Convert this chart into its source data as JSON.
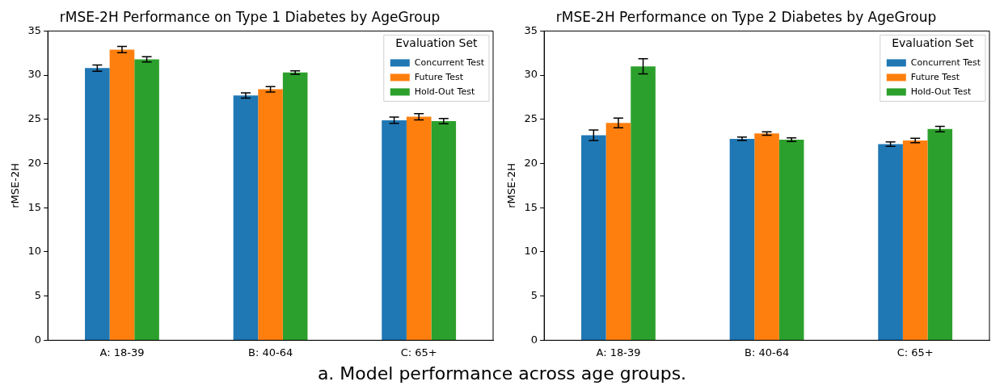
{
  "chart_data": [
    {
      "type": "bar",
      "title": "rMSE-2H Performance on Type 1 Diabetes by AgeGroup",
      "ylabel": "rMSE-2H",
      "categories": [
        "A: 18-39",
        "B: 40-64",
        "C: 65+"
      ],
      "ylim": [
        0,
        35
      ],
      "yticks": [
        0,
        5,
        10,
        15,
        20,
        25,
        30,
        35
      ],
      "grid": false,
      "legend": "top right",
      "legend_title": "Evaluation Set",
      "series": [
        {
          "name": "Concurrent Test",
          "color": "#1f77b4",
          "values": [
            30.8,
            27.7,
            24.9
          ],
          "errors": [
            0.35,
            0.3,
            0.35
          ]
        },
        {
          "name": "Future Test",
          "color": "#ff7f0e",
          "values": [
            32.9,
            28.4,
            25.3
          ],
          "errors": [
            0.35,
            0.3,
            0.35
          ]
        },
        {
          "name": "Hold-Out Test",
          "color": "#2ca02c",
          "values": [
            31.8,
            30.3,
            24.8
          ],
          "errors": [
            0.3,
            0.2,
            0.3
          ]
        }
      ]
    },
    {
      "type": "bar",
      "title": "rMSE-2H Performance on Type 2 Diabetes by AgeGroup",
      "ylabel": "rMSE-2H",
      "categories": [
        "A: 18-39",
        "B: 40-64",
        "C: 65+"
      ],
      "ylim": [
        0,
        35
      ],
      "yticks": [
        0,
        5,
        10,
        15,
        20,
        25,
        30,
        35
      ],
      "grid": false,
      "legend": "top right",
      "legend_title": "Evaluation Set",
      "annotations": [
        "a. Model performance across age groups."
      ],
      "series": [
        {
          "name": "Concurrent Test",
          "color": "#1f77b4",
          "values": [
            23.2,
            22.8,
            22.2
          ],
          "errors": [
            0.6,
            0.2,
            0.25
          ]
        },
        {
          "name": "Future Test",
          "color": "#ff7f0e",
          "values": [
            24.6,
            23.4,
            22.6
          ],
          "errors": [
            0.55,
            0.2,
            0.25
          ]
        },
        {
          "name": "Hold-Out Test",
          "color": "#2ca02c",
          "values": [
            31.0,
            22.7,
            23.9
          ],
          "errors": [
            0.85,
            0.2,
            0.3
          ]
        }
      ]
    }
  ]
}
